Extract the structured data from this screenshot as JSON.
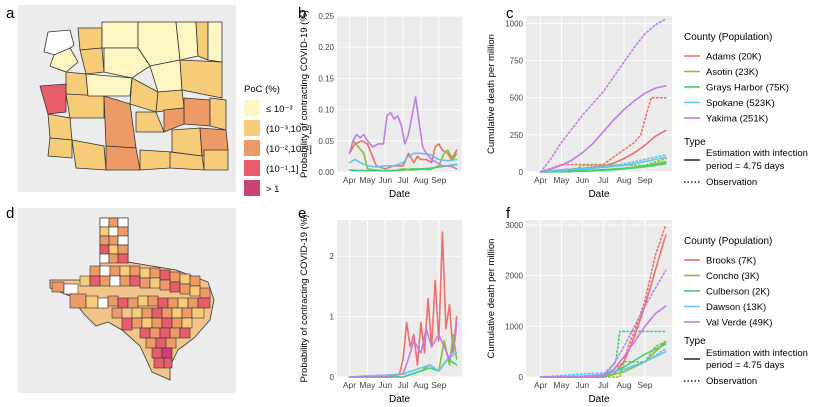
{
  "panels": {
    "a": "a",
    "b": "b",
    "c": "c",
    "d": "d",
    "e": "e",
    "f": "f"
  },
  "map_legend": {
    "title": "PoC (%)",
    "items": [
      {
        "label": "≤ 10⁻³",
        "color": "#fdf6c3"
      },
      {
        "label": "(10⁻³,10⁻²]",
        "color": "#f6cc78"
      },
      {
        "label": "(10⁻²,10⁻¹]",
        "color": "#ee9a67"
      },
      {
        "label": "(10⁻¹,1]",
        "color": "#e85d6b"
      },
      {
        "label": "> 1",
        "color": "#cd3f77"
      }
    ]
  },
  "legend_top": {
    "title": "County (Population)",
    "entries": [
      {
        "label": "Adams (20K)",
        "color": "#ef6f6c"
      },
      {
        "label": "Asotin (23K)",
        "color": "#8cbd32"
      },
      {
        "label": "Grays Harbor (75K)",
        "color": "#3fcf7a"
      },
      {
        "label": "Spokane (523K)",
        "color": "#5fc6ef"
      },
      {
        "label": "Yakima (251K)",
        "color": "#c37be6"
      }
    ]
  },
  "legend_bottom": {
    "title": "County (Population)",
    "entries": [
      {
        "label": "Brooks (7K)",
        "color": "#ef6f6c"
      },
      {
        "label": "Concho (3K)",
        "color": "#8cbd32"
      },
      {
        "label": "Culberson (2K)",
        "color": "#3fcf7a"
      },
      {
        "label": "Dawson (13K)",
        "color": "#5fc6ef"
      },
      {
        "label": "Val Verde (49K)",
        "color": "#c37be6"
      }
    ]
  },
  "type_legend": {
    "title": "Type",
    "solid_line1": "Estimation with infection",
    "solid_line2": "period = 4.75 days",
    "dotted": "Observation"
  },
  "chart_data": [
    {
      "id": "b",
      "type": "line",
      "xlabel": "Date",
      "ylabel": "Probability of contracting COVID-19 (%)",
      "x_ticks": [
        "Apr",
        "May",
        "Jun",
        "Jul",
        "Aug",
        "Sep"
      ],
      "x_range": [
        "Mar 20",
        "Sep 25"
      ],
      "ylim": [
        0,
        0.25
      ],
      "y_ticks": [
        "0.00",
        "0.05",
        "0.10",
        "0.15",
        "0.20",
        "0.25"
      ],
      "series": [
        {
          "name": "Adams (20K)",
          "color": "#ef6f6c",
          "style": "solid",
          "x": [
            0,
            0.3,
            0.7,
            1,
            1.5,
            2,
            2.5,
            3,
            3.3,
            3.6,
            3.8,
            4,
            4.3,
            4.6,
            4.8,
            5,
            5.2,
            5.5,
            5.7,
            6
          ],
          "y": [
            0.03,
            0.045,
            0.05,
            0.045,
            0.01,
            0.005,
            0.01,
            0.01,
            0.03,
            0.015,
            0.025,
            0.02,
            0.02,
            0.015,
            0.04,
            0.045,
            0.035,
            0.03,
            0.02,
            0.035
          ]
        },
        {
          "name": "Asotin (23K)",
          "color": "#8cbd32",
          "style": "solid",
          "x": [
            0,
            0.2,
            0.5,
            0.8,
            1,
            1.5,
            2,
            2.5,
            3,
            3.5,
            4,
            4.5,
            5,
            5.3,
            5.5,
            5.8,
            6
          ],
          "y": [
            0.03,
            0.05,
            0.04,
            0.03,
            0.005,
            0.003,
            0.002,
            0.002,
            0.005,
            0.003,
            0.005,
            0.004,
            0.01,
            0.03,
            0.035,
            0.02,
            0.03
          ]
        },
        {
          "name": "Grays Harbor (75K)",
          "color": "#3fcf7a",
          "style": "solid",
          "x": [
            0,
            1,
            2,
            3,
            3.5,
            4,
            4.5,
            5,
            5.5,
            6
          ],
          "y": [
            0.003,
            0.002,
            0.002,
            0.003,
            0.005,
            0.005,
            0.006,
            0.008,
            0.01,
            0.012
          ]
        },
        {
          "name": "Spokane (523K)",
          "color": "#5fc6ef",
          "style": "solid",
          "x": [
            0,
            0.3,
            0.6,
            1,
            1.5,
            2,
            2.5,
            3,
            3.3,
            3.6,
            4,
            4.5,
            5,
            5.5,
            6
          ],
          "y": [
            0.015,
            0.02,
            0.015,
            0.01,
            0.008,
            0.01,
            0.01,
            0.015,
            0.025,
            0.03,
            0.03,
            0.028,
            0.02,
            0.018,
            0.02
          ]
        },
        {
          "name": "Yakima (251K)",
          "color": "#c37be6",
          "style": "solid",
          "x": [
            0,
            0.2,
            0.4,
            0.6,
            0.8,
            1,
            1.3,
            1.6,
            1.9,
            2.1,
            2.3,
            2.5,
            2.7,
            2.9,
            3.1,
            3.3,
            3.5,
            3.7,
            3.9,
            4.1,
            4.3,
            4.6,
            4.9,
            5.2,
            5.5,
            5.8,
            6
          ],
          "y": [
            0.03,
            0.05,
            0.06,
            0.055,
            0.06,
            0.05,
            0.04,
            0.045,
            0.045,
            0.09,
            0.095,
            0.085,
            0.09,
            0.075,
            0.045,
            0.06,
            0.09,
            0.12,
            0.08,
            0.04,
            0.03,
            0.02,
            0.015,
            0.01,
            0.01,
            0.008,
            0.005
          ]
        }
      ]
    },
    {
      "id": "c",
      "type": "line",
      "xlabel": "Date",
      "ylabel": "Cumulative death per million",
      "x_ticks": [
        "Apr",
        "May",
        "Jun",
        "Jul",
        "Aug",
        "Sep"
      ],
      "ylim": [
        0,
        1050
      ],
      "y_ticks": [
        "0",
        "250",
        "500",
        "750",
        "1000"
      ],
      "series": [
        {
          "name": "Adams (20K)",
          "color": "#ef6f6c",
          "style": "solid",
          "x": [
            0,
            1,
            2,
            3,
            3.5,
            4,
            4.5,
            5,
            5.5,
            6
          ],
          "y": [
            0,
            15,
            25,
            40,
            60,
            90,
            130,
            180,
            240,
            280
          ]
        },
        {
          "name": "Adams (20K)",
          "color": "#ef6f6c",
          "style": "dotted",
          "x": [
            0,
            1,
            2,
            3,
            3.5,
            4,
            4.5,
            4.8,
            5,
            5.3,
            5.6,
            6
          ],
          "y": [
            0,
            50,
            50,
            50,
            100,
            150,
            200,
            250,
            350,
            500,
            500,
            500
          ]
        },
        {
          "name": "Asotin (23K)",
          "color": "#8cbd32",
          "style": "solid",
          "x": [
            0,
            1,
            2,
            3,
            4,
            5,
            5.5,
            6
          ],
          "y": [
            0,
            5,
            10,
            15,
            25,
            40,
            55,
            70
          ]
        },
        {
          "name": "Asotin (23K)",
          "color": "#8cbd32",
          "style": "dotted",
          "x": [
            0,
            1.5,
            2,
            3,
            4,
            5,
            6
          ],
          "y": [
            0,
            0,
            45,
            45,
            45,
            45,
            90
          ]
        },
        {
          "name": "Grays Harbor (75K)",
          "color": "#3fcf7a",
          "style": "solid",
          "x": [
            0,
            2,
            3,
            4,
            5,
            6
          ],
          "y": [
            0,
            5,
            10,
            20,
            35,
            55
          ]
        },
        {
          "name": "Grays Harbor (75K)",
          "color": "#3fcf7a",
          "style": "dotted",
          "x": [
            0,
            2,
            3,
            4,
            5,
            6
          ],
          "y": [
            0,
            10,
            15,
            25,
            40,
            60
          ]
        },
        {
          "name": "Spokane (523K)",
          "color": "#5fc6ef",
          "style": "solid",
          "x": [
            0,
            1,
            2,
            3,
            4,
            5,
            6
          ],
          "y": [
            0,
            10,
            20,
            30,
            45,
            70,
            100
          ]
        },
        {
          "name": "Spokane (523K)",
          "color": "#5fc6ef",
          "style": "dotted",
          "x": [
            0,
            1,
            2,
            3,
            4,
            5,
            6
          ],
          "y": [
            0,
            15,
            25,
            35,
            55,
            85,
            115
          ]
        },
        {
          "name": "Yakima (251K)",
          "color": "#c37be6",
          "style": "solid",
          "x": [
            0,
            0.5,
            1,
            1.5,
            2,
            2.5,
            3,
            3.5,
            4,
            4.5,
            5,
            5.5,
            6
          ],
          "y": [
            0,
            20,
            45,
            80,
            130,
            190,
            270,
            350,
            420,
            480,
            530,
            565,
            580
          ]
        },
        {
          "name": "Yakima (251K)",
          "color": "#c37be6",
          "style": "dotted",
          "x": [
            0,
            0.5,
            1,
            1.5,
            2,
            2.5,
            3,
            3.5,
            4,
            4.5,
            5,
            5.5,
            6
          ],
          "y": [
            0,
            90,
            200,
            290,
            380,
            460,
            540,
            640,
            740,
            840,
            930,
            990,
            1030
          ]
        }
      ]
    },
    {
      "id": "e",
      "type": "line",
      "xlabel": "Date",
      "ylabel": "Probability of contracting COVID-19 (%)",
      "x_ticks": [
        "Apr",
        "May",
        "Jun",
        "Jul",
        "Aug",
        "Sep"
      ],
      "ylim": [
        0,
        2.6
      ],
      "y_ticks": [
        "0",
        "1",
        "2"
      ],
      "series": [
        {
          "name": "Brooks (7K)",
          "color": "#ef6f6c",
          "style": "solid",
          "x": [
            0,
            1,
            2,
            2.8,
            3,
            3.2,
            3.4,
            3.6,
            3.8,
            4,
            4.2,
            4.4,
            4.6,
            4.8,
            5,
            5.2,
            5.4,
            5.6,
            5.8,
            6
          ],
          "y": [
            0,
            0,
            0,
            0.05,
            0.3,
            0.9,
            0.5,
            0.7,
            0.2,
            0.9,
            0.4,
            1.3,
            0.5,
            1.6,
            0.6,
            2.4,
            0.8,
            1.2,
            0.4,
            1.0
          ]
        },
        {
          "name": "Concho (3K)",
          "color": "#8cbd32",
          "style": "solid",
          "x": [
            0,
            3,
            3.5,
            4,
            4.5,
            5,
            5.3,
            5.6,
            5.8,
            6
          ],
          "y": [
            0,
            0,
            0.05,
            0.1,
            0.2,
            0.1,
            0.6,
            0.2,
            0.7,
            0.3
          ]
        },
        {
          "name": "Culberson (2K)",
          "color": "#3fcf7a",
          "style": "solid",
          "x": [
            0,
            3,
            3.5,
            4,
            4.5,
            5,
            5.5,
            6
          ],
          "y": [
            0,
            0,
            0.05,
            0.1,
            0.15,
            0.1,
            0.3,
            0.2
          ]
        },
        {
          "name": "Dawson (13K)",
          "color": "#5fc6ef",
          "style": "solid",
          "x": [
            0,
            1,
            2,
            3,
            3.5,
            4,
            4.5,
            5,
            5.5,
            6
          ],
          "y": [
            0,
            0.02,
            0.03,
            0.05,
            0.1,
            0.15,
            0.2,
            0.1,
            0.3,
            0.4
          ]
        },
        {
          "name": "Val Verde (49K)",
          "color": "#c37be6",
          "style": "solid",
          "x": [
            0,
            2,
            3,
            3.3,
            3.6,
            4,
            4.3,
            4.6,
            5,
            5.3,
            5.6,
            5.9,
            6
          ],
          "y": [
            0,
            0,
            0.05,
            0.3,
            0.6,
            0.4,
            0.8,
            0.5,
            0.7,
            0.5,
            0.3,
            0.6,
            0.9
          ]
        }
      ]
    },
    {
      "id": "f",
      "type": "line",
      "xlabel": "Date",
      "ylabel": "Cumulative death per million",
      "x_ticks": [
        "Apr",
        "May",
        "Jun",
        "Jul",
        "Aug",
        "Sep"
      ],
      "ylim": [
        0,
        3100
      ],
      "y_ticks": [
        "0",
        "1000",
        "2000",
        "3000"
      ],
      "series": [
        {
          "name": "Brooks (7K)",
          "color": "#ef6f6c",
          "style": "solid",
          "x": [
            0,
            2,
            3,
            3.5,
            4,
            4.5,
            5,
            5.5,
            6
          ],
          "y": [
            0,
            0,
            0,
            50,
            300,
            800,
            1400,
            2100,
            2800
          ]
        },
        {
          "name": "Brooks (7K)",
          "color": "#ef6f6c",
          "style": "dotted",
          "x": [
            0,
            3,
            3.5,
            4,
            4.2,
            4.5,
            5,
            5.5,
            6
          ],
          "y": [
            0,
            0,
            150,
            300,
            600,
            900,
            1500,
            2400,
            3000
          ]
        },
        {
          "name": "Concho (3K)",
          "color": "#8cbd32",
          "style": "solid",
          "x": [
            0,
            3,
            4,
            5,
            5.5,
            6
          ],
          "y": [
            0,
            0,
            100,
            300,
            500,
            700
          ]
        },
        {
          "name": "Concho (3K)",
          "color": "#8cbd32",
          "style": "dotted",
          "x": [
            0,
            3.8,
            4,
            5,
            5.5,
            6
          ],
          "y": [
            0,
            0,
            300,
            300,
            600,
            700
          ]
        },
        {
          "name": "Culberson (2K)",
          "color": "#3fcf7a",
          "style": "solid",
          "x": [
            0,
            3,
            4,
            5,
            6
          ],
          "y": [
            0,
            0,
            200,
            450,
            650
          ]
        },
        {
          "name": "Culberson (2K)",
          "color": "#3fcf7a",
          "style": "dotted",
          "x": [
            0,
            3,
            3.6,
            3.8,
            6
          ],
          "y": [
            0,
            0,
            300,
            900,
            900
          ]
        },
        {
          "name": "Dawson (13K)",
          "color": "#5fc6ef",
          "style": "solid",
          "x": [
            0,
            2,
            3,
            4,
            5,
            6
          ],
          "y": [
            0,
            20,
            50,
            150,
            300,
            500
          ]
        },
        {
          "name": "Dawson (13K)",
          "color": "#5fc6ef",
          "style": "dotted",
          "x": [
            0,
            2,
            3,
            4,
            5,
            6
          ],
          "y": [
            0,
            60,
            80,
            150,
            300,
            550
          ]
        },
        {
          "name": "Val Verde (49K)",
          "color": "#c37be6",
          "style": "solid",
          "x": [
            0,
            2,
            3,
            3.5,
            4,
            4.5,
            5,
            5.5,
            6
          ],
          "y": [
            0,
            0,
            20,
            150,
            400,
            700,
            1000,
            1250,
            1400
          ]
        },
        {
          "name": "Val Verde (49K)",
          "color": "#c37be6",
          "style": "dotted",
          "x": [
            0,
            2,
            3,
            3.5,
            4,
            4.5,
            5,
            5.5,
            6
          ],
          "y": [
            0,
            0,
            50,
            250,
            600,
            1000,
            1400,
            1750,
            2100
          ]
        }
      ]
    }
  ]
}
